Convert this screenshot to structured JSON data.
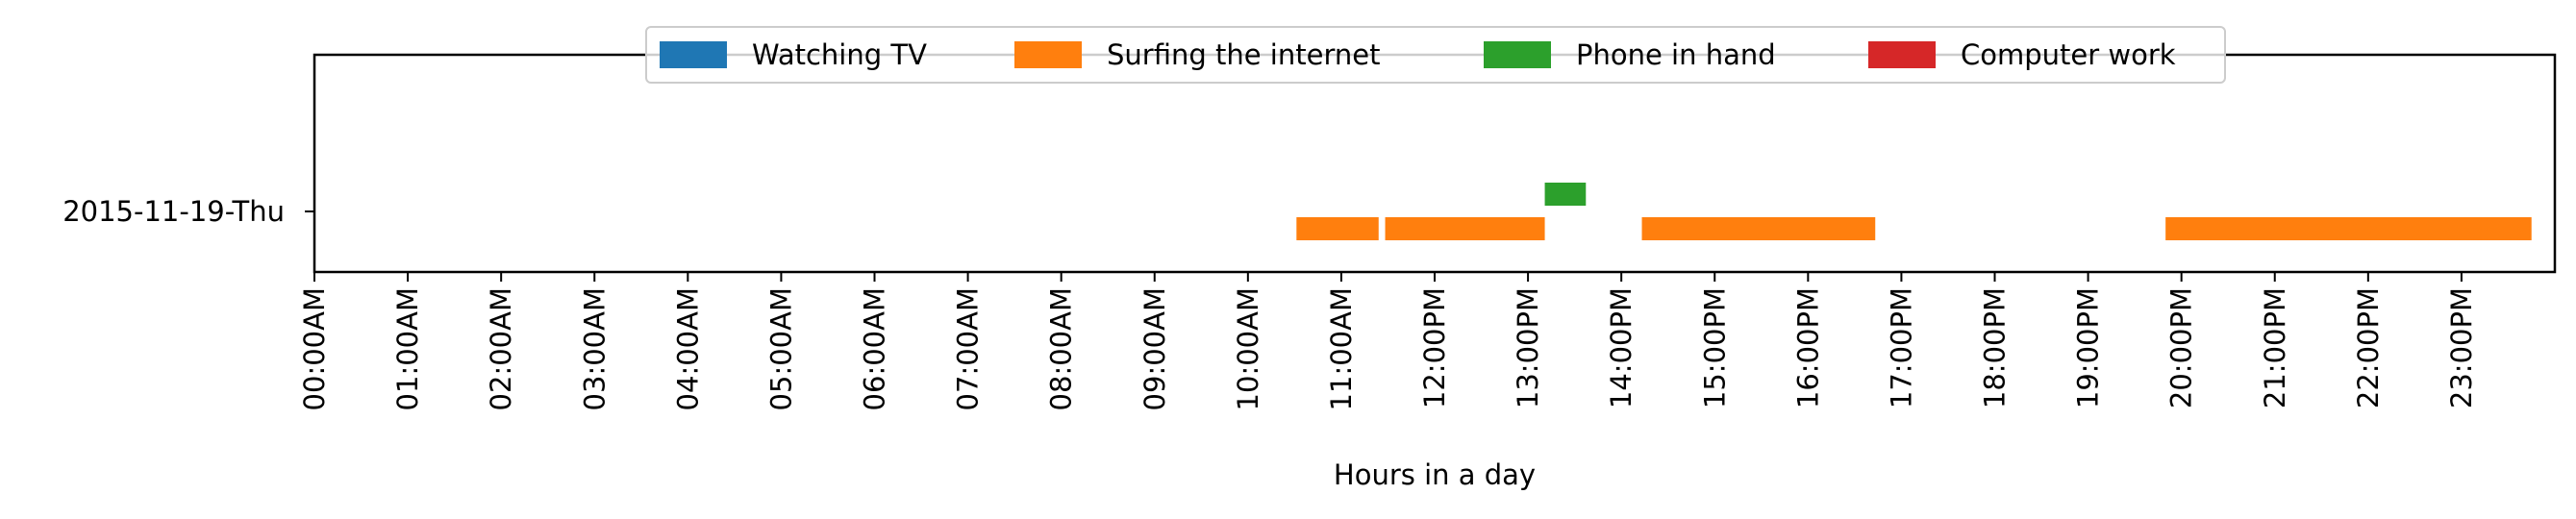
{
  "chart_data": {
    "type": "timeline",
    "xlabel": "Hours in a day",
    "xlim": [
      0,
      24
    ],
    "x_unit": "hours",
    "x_ticks": [
      "00:00AM",
      "01:00AM",
      "02:00AM",
      "03:00AM",
      "04:00AM",
      "05:00AM",
      "06:00AM",
      "07:00AM",
      "08:00AM",
      "09:00AM",
      "10:00AM",
      "11:00AM",
      "12:00PM",
      "13:00PM",
      "14:00PM",
      "15:00PM",
      "16:00PM",
      "17:00PM",
      "18:00PM",
      "19:00PM",
      "20:00PM",
      "21:00PM",
      "22:00PM",
      "23:00PM"
    ],
    "rows": [
      "2015-11-19-Thu"
    ],
    "legend": {
      "placement": "top-center",
      "entries": [
        {
          "name": "Watching TV",
          "color": "#1f77b4"
        },
        {
          "name": "Surfing the internet",
          "color": "#ff7f0e"
        },
        {
          "name": "Phone in hand",
          "color": "#2ca02c"
        },
        {
          "name": "Computer work",
          "color": "#d62728"
        }
      ]
    },
    "series": [
      {
        "name": "Watching TV",
        "color": "#1f77b4",
        "offset": 0,
        "intervals": []
      },
      {
        "name": "Surfing the internet",
        "color": "#ff7f0e",
        "offset": -1,
        "intervals": [
          [
            10.52,
            11.4
          ],
          [
            11.47,
            13.18
          ],
          [
            14.22,
            16.72
          ],
          [
            19.83,
            23.75
          ]
        ]
      },
      {
        "name": "Phone in hand",
        "color": "#2ca02c",
        "offset": 1,
        "intervals": [
          [
            13.18,
            13.62
          ]
        ]
      },
      {
        "name": "Computer work",
        "color": "#d62728",
        "offset": 0,
        "intervals": []
      }
    ],
    "grid": false
  }
}
